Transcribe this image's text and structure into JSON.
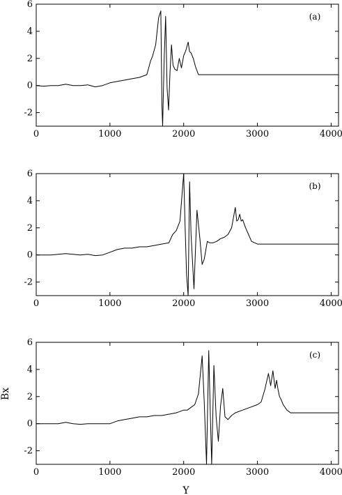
{
  "chart_data": [
    {
      "type": "line",
      "panel_label": "(a)",
      "xlabel": "",
      "ylabel": "",
      "xlim": [
        0,
        4100
      ],
      "ylim": [
        -3,
        6
      ],
      "xticks": [
        0,
        1000,
        2000,
        3000,
        4000
      ],
      "yticks": [
        -2,
        0,
        2,
        4,
        6
      ],
      "grid": false,
      "legend": "none",
      "series": [
        {
          "x": [
            0,
            100,
            200,
            300,
            400,
            500,
            600,
            700,
            800,
            900,
            1000,
            1100,
            1200,
            1300,
            1400,
            1500,
            1550,
            1580,
            1620,
            1660,
            1690,
            1705,
            1715,
            1735,
            1755,
            1775,
            1795,
            1815,
            1835,
            1855,
            1880,
            1910,
            1940,
            1970,
            2000,
            2030,
            2060,
            2080,
            2100,
            2130,
            2160,
            2200,
            2300,
            2600,
            3000,
            3500,
            4100
          ],
          "y": [
            0,
            -0.05,
            0,
            0,
            0.1,
            0,
            0,
            0.05,
            -0.1,
            0,
            0.2,
            0.3,
            0.4,
            0.5,
            0.6,
            0.8,
            1.8,
            2.2,
            3.0,
            5.0,
            5.5,
            -1.5,
            -3.0,
            2.0,
            5.1,
            -0.2,
            -1.8,
            1.0,
            3.0,
            1.5,
            1.2,
            1.1,
            2.0,
            1.3,
            2.2,
            2.6,
            3.2,
            2.5,
            2.4,
            2.0,
            1.4,
            0.8,
            0.8,
            0.8,
            0.8,
            0.8,
            0.8
          ]
        }
      ]
    },
    {
      "type": "line",
      "panel_label": "(b)",
      "xlabel": "",
      "ylabel": "",
      "xlim": [
        0,
        4100
      ],
      "ylim": [
        -3,
        6
      ],
      "xticks": [
        0,
        1000,
        2000,
        3000,
        4000
      ],
      "yticks": [
        -2,
        0,
        2,
        4,
        6
      ],
      "grid": false,
      "legend": "none",
      "series": [
        {
          "x": [
            0,
            100,
            200,
            300,
            400,
            500,
            600,
            700,
            800,
            900,
            1000,
            1100,
            1200,
            1300,
            1400,
            1500,
            1600,
            1700,
            1800,
            1850,
            1900,
            1950,
            2000,
            2020,
            2040,
            2060,
            2080,
            2100,
            2140,
            2180,
            2220,
            2250,
            2280,
            2320,
            2350,
            2400,
            2450,
            2500,
            2550,
            2600,
            2650,
            2700,
            2720,
            2740,
            2760,
            2780,
            2800,
            2840,
            2880,
            2920,
            3000,
            3500,
            4100
          ],
          "y": [
            0,
            0,
            0,
            0.05,
            0.1,
            0.05,
            0,
            0.05,
            -0.05,
            0,
            0.2,
            0.4,
            0.5,
            0.5,
            0.6,
            0.6,
            0.7,
            0.8,
            0.9,
            1.5,
            1.8,
            2.5,
            6.0,
            2.0,
            -1.5,
            -3.0,
            5.4,
            1.5,
            -2.5,
            3.3,
            1.2,
            -0.7,
            -0.3,
            1.0,
            0.9,
            0.9,
            1.0,
            1.2,
            1.3,
            1.5,
            2.0,
            3.5,
            2.5,
            2.6,
            3.0,
            2.5,
            2.6,
            2.0,
            1.5,
            1.0,
            0.8,
            0.8,
            0.8
          ]
        }
      ]
    },
    {
      "type": "line",
      "panel_label": "(c)",
      "xlabel": "Y",
      "ylabel": "Bx",
      "xlim": [
        0,
        4100
      ],
      "ylim": [
        -3,
        6
      ],
      "xticks": [
        0,
        1000,
        2000,
        3000,
        4000
      ],
      "yticks": [
        -2,
        0,
        2,
        4,
        6
      ],
      "grid": false,
      "legend": "none",
      "series": [
        {
          "x": [
            0,
            100,
            200,
            300,
            400,
            500,
            600,
            700,
            800,
            900,
            1000,
            1100,
            1200,
            1300,
            1400,
            1500,
            1600,
            1700,
            1800,
            1900,
            1950,
            2000,
            2050,
            2100,
            2150,
            2200,
            2250,
            2280,
            2310,
            2340,
            2360,
            2380,
            2410,
            2440,
            2470,
            2500,
            2530,
            2560,
            2600,
            2650,
            2700,
            2800,
            2900,
            3000,
            3050,
            3100,
            3150,
            3180,
            3210,
            3240,
            3260,
            3280,
            3300,
            3320,
            3350,
            3400,
            3450,
            3500,
            3600,
            4100
          ],
          "y": [
            0,
            0,
            0,
            0,
            0.1,
            0,
            -0.05,
            0,
            0,
            0,
            0,
            0.2,
            0.3,
            0.4,
            0.5,
            0.5,
            0.6,
            0.6,
            0.7,
            0.8,
            0.9,
            1.0,
            1.0,
            1.2,
            1.4,
            2.2,
            5.0,
            1.5,
            -3.0,
            5.4,
            1.0,
            -3.0,
            4.3,
            0.5,
            -1.3,
            1.3,
            2.6,
            0.5,
            0.3,
            0.6,
            0.8,
            1.0,
            1.2,
            1.4,
            1.6,
            2.5,
            3.7,
            2.8,
            3.9,
            2.6,
            3.2,
            2.5,
            2.0,
            1.8,
            1.4,
            1.0,
            0.8,
            0.8,
            0.8,
            0.8
          ]
        }
      ]
    }
  ]
}
